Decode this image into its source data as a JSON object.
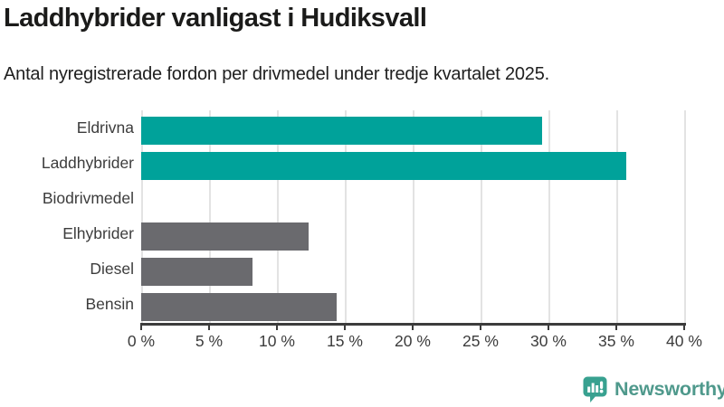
{
  "header": {
    "title": "Laddhybrider vanligast i Hudiksvall",
    "subtitle": "Antal nyregistrerade fordon per drivmedel under tredje kvartalet 2025."
  },
  "chart_data": {
    "type": "bar",
    "orientation": "horizontal",
    "title": "Laddhybrider vanligast i Hudiksvall",
    "subtitle": "Antal nyregistrerade fordon per drivmedel under tredje kvartalet 2025.",
    "categories": [
      "Eldrivna",
      "Laddhybrider",
      "Biodrivmedel",
      "Elhybrider",
      "Diesel",
      "Bensin"
    ],
    "values": [
      29.5,
      35.7,
      0,
      12.3,
      8.2,
      14.4
    ],
    "unit": "%",
    "bar_colors": [
      "#00a29a",
      "#00a29a",
      "#6a6a6e",
      "#6a6a6e",
      "#6a6a6e",
      "#6a6a6e"
    ],
    "xlim": [
      0,
      40
    ],
    "x_ticks": [
      0,
      5,
      10,
      15,
      20,
      25,
      30,
      35,
      40
    ],
    "x_tick_labels": [
      "0 %",
      "5 %",
      "10 %",
      "15 %",
      "20 %",
      "25 %",
      "30 %",
      "35 %",
      "40 %"
    ],
    "grid": true,
    "legend": false
  },
  "branding": {
    "logo_text": "Newsworthy",
    "logo_text_color": "#4f998c",
    "logo_icon_color": "#38a190"
  },
  "colors": {
    "accent_teal": "#00a29a",
    "neutral_gray": "#6a6a6e",
    "gridline": "#e3e3e3",
    "axis": "#3c3c3c",
    "text": "#1b1b1a"
  }
}
